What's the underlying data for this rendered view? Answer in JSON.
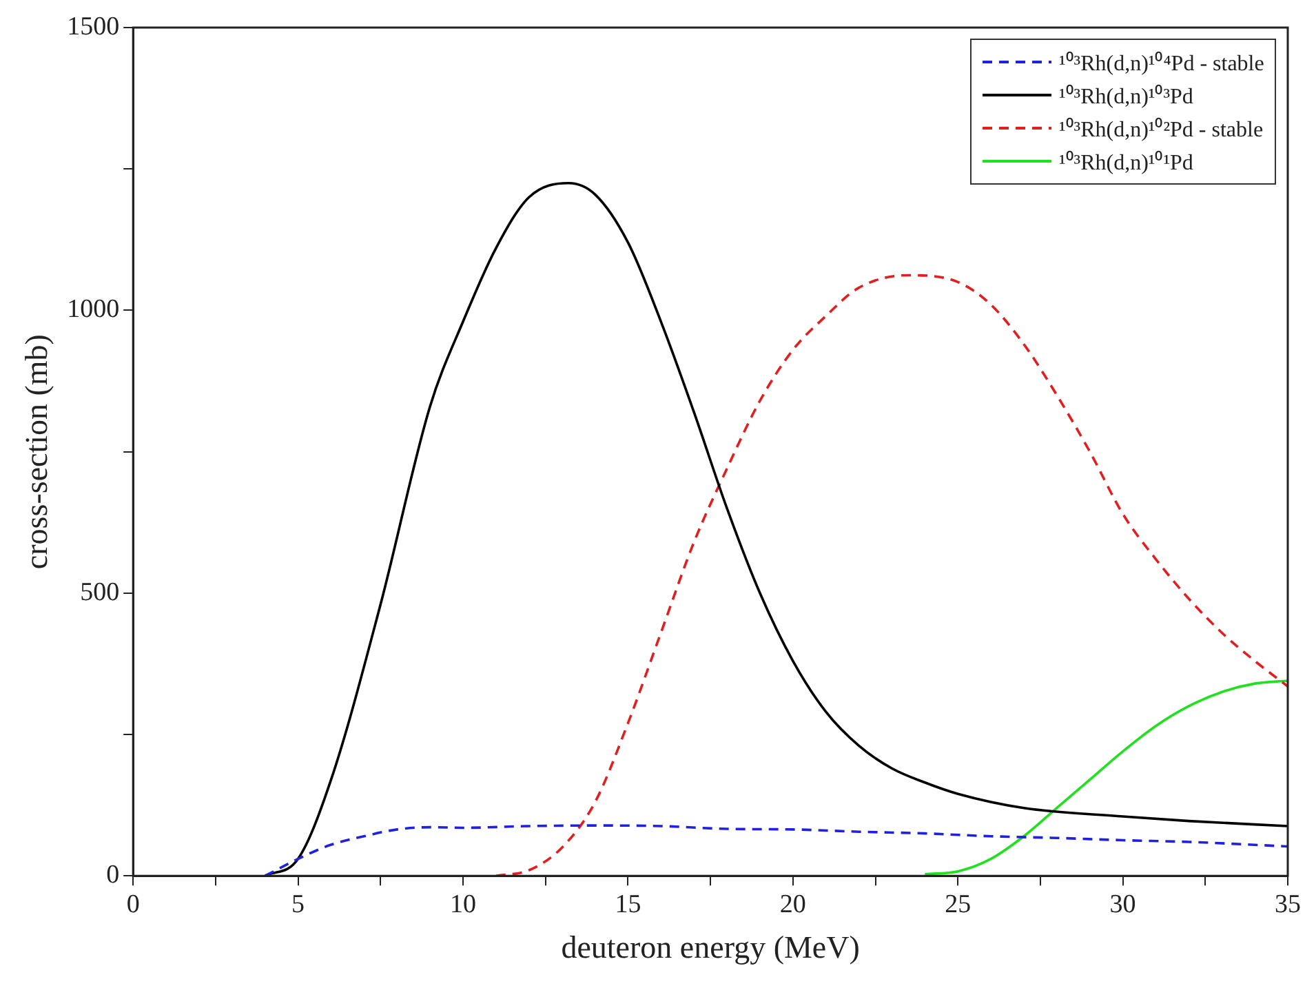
{
  "chart_data": {
    "type": "line",
    "xlabel": "deuteron energy (MeV)",
    "ylabel": "cross-section (mb)",
    "xlim": [
      0,
      35
    ],
    "ylim": [
      0,
      1500
    ],
    "xticks": [
      0,
      {
        "value": 2.5,
        "label": null
      },
      5,
      {
        "value": 7.5,
        "label": null
      },
      10,
      {
        "value": 12.5,
        "label": null
      },
      15,
      {
        "value": 17.5,
        "label": null
      },
      20,
      {
        "value": 22.5,
        "label": null
      },
      25,
      {
        "value": 27.5,
        "label": null
      },
      30,
      {
        "value": 32.5,
        "label": null
      },
      35
    ],
    "yticks": [
      0,
      {
        "value": 250,
        "label": null
      },
      500,
      {
        "value": 750,
        "label": null
      },
      1000,
      {
        "value": 1250,
        "label": null
      },
      1500
    ],
    "grid": false,
    "legend": "top right",
    "marker": "none",
    "series": [
      {
        "name": "¹⁰³Rh(d,n)¹⁰⁴Pd - stable",
        "color": "#2020e0",
        "line_style": "dashed",
        "x": [
          4,
          5,
          6,
          7,
          8,
          9,
          10,
          12,
          14,
          16,
          18,
          20,
          22,
          24,
          26,
          28,
          30,
          32,
          35
        ],
        "values": [
          0,
          30,
          55,
          70,
          82,
          86,
          85,
          88,
          89,
          88,
          83,
          82,
          78,
          75,
          70,
          67,
          63,
          60,
          52
        ]
      },
      {
        "name": "¹⁰³Rh(d,n)¹⁰³Pd",
        "color": "#000000",
        "line_style": "solid",
        "x": [
          4,
          5,
          6,
          7.5,
          9,
          10,
          11,
          12,
          13.2,
          14,
          15,
          16,
          17,
          18,
          19,
          20,
          21,
          22,
          23,
          24,
          25,
          27,
          30,
          32,
          35
        ],
        "values": [
          0,
          30,
          170,
          480,
          830,
          980,
          1110,
          1200,
          1225,
          1205,
          1120,
          980,
          820,
          650,
          500,
          380,
          290,
          230,
          190,
          165,
          145,
          120,
          105,
          97,
          88
        ]
      },
      {
        "name": "¹⁰³Rh(d,n)¹⁰²Pd - stable",
        "color": "#e02020",
        "line_style": "dashed",
        "x": [
          11,
          12,
          13,
          14,
          15,
          16,
          17,
          18,
          19,
          20,
          21,
          22,
          23.5,
          25,
          26,
          27,
          28,
          29,
          30,
          31,
          32,
          33,
          34,
          35
        ],
        "values": [
          0,
          10,
          50,
          130,
          270,
          430,
          590,
          720,
          840,
          930,
          990,
          1040,
          1062,
          1050,
          1010,
          940,
          850,
          750,
          640,
          560,
          490,
          430,
          380,
          335
        ]
      },
      {
        "name": "¹⁰³Rh(d,n)¹⁰¹Pd",
        "color": "#20e020",
        "line_style": "solid",
        "x": [
          24,
          25,
          26,
          27,
          28,
          29,
          30,
          31,
          32,
          33,
          34,
          35
        ],
        "values": [
          3,
          8,
          30,
          70,
          120,
          170,
          220,
          265,
          300,
          325,
          340,
          345
        ]
      }
    ]
  }
}
